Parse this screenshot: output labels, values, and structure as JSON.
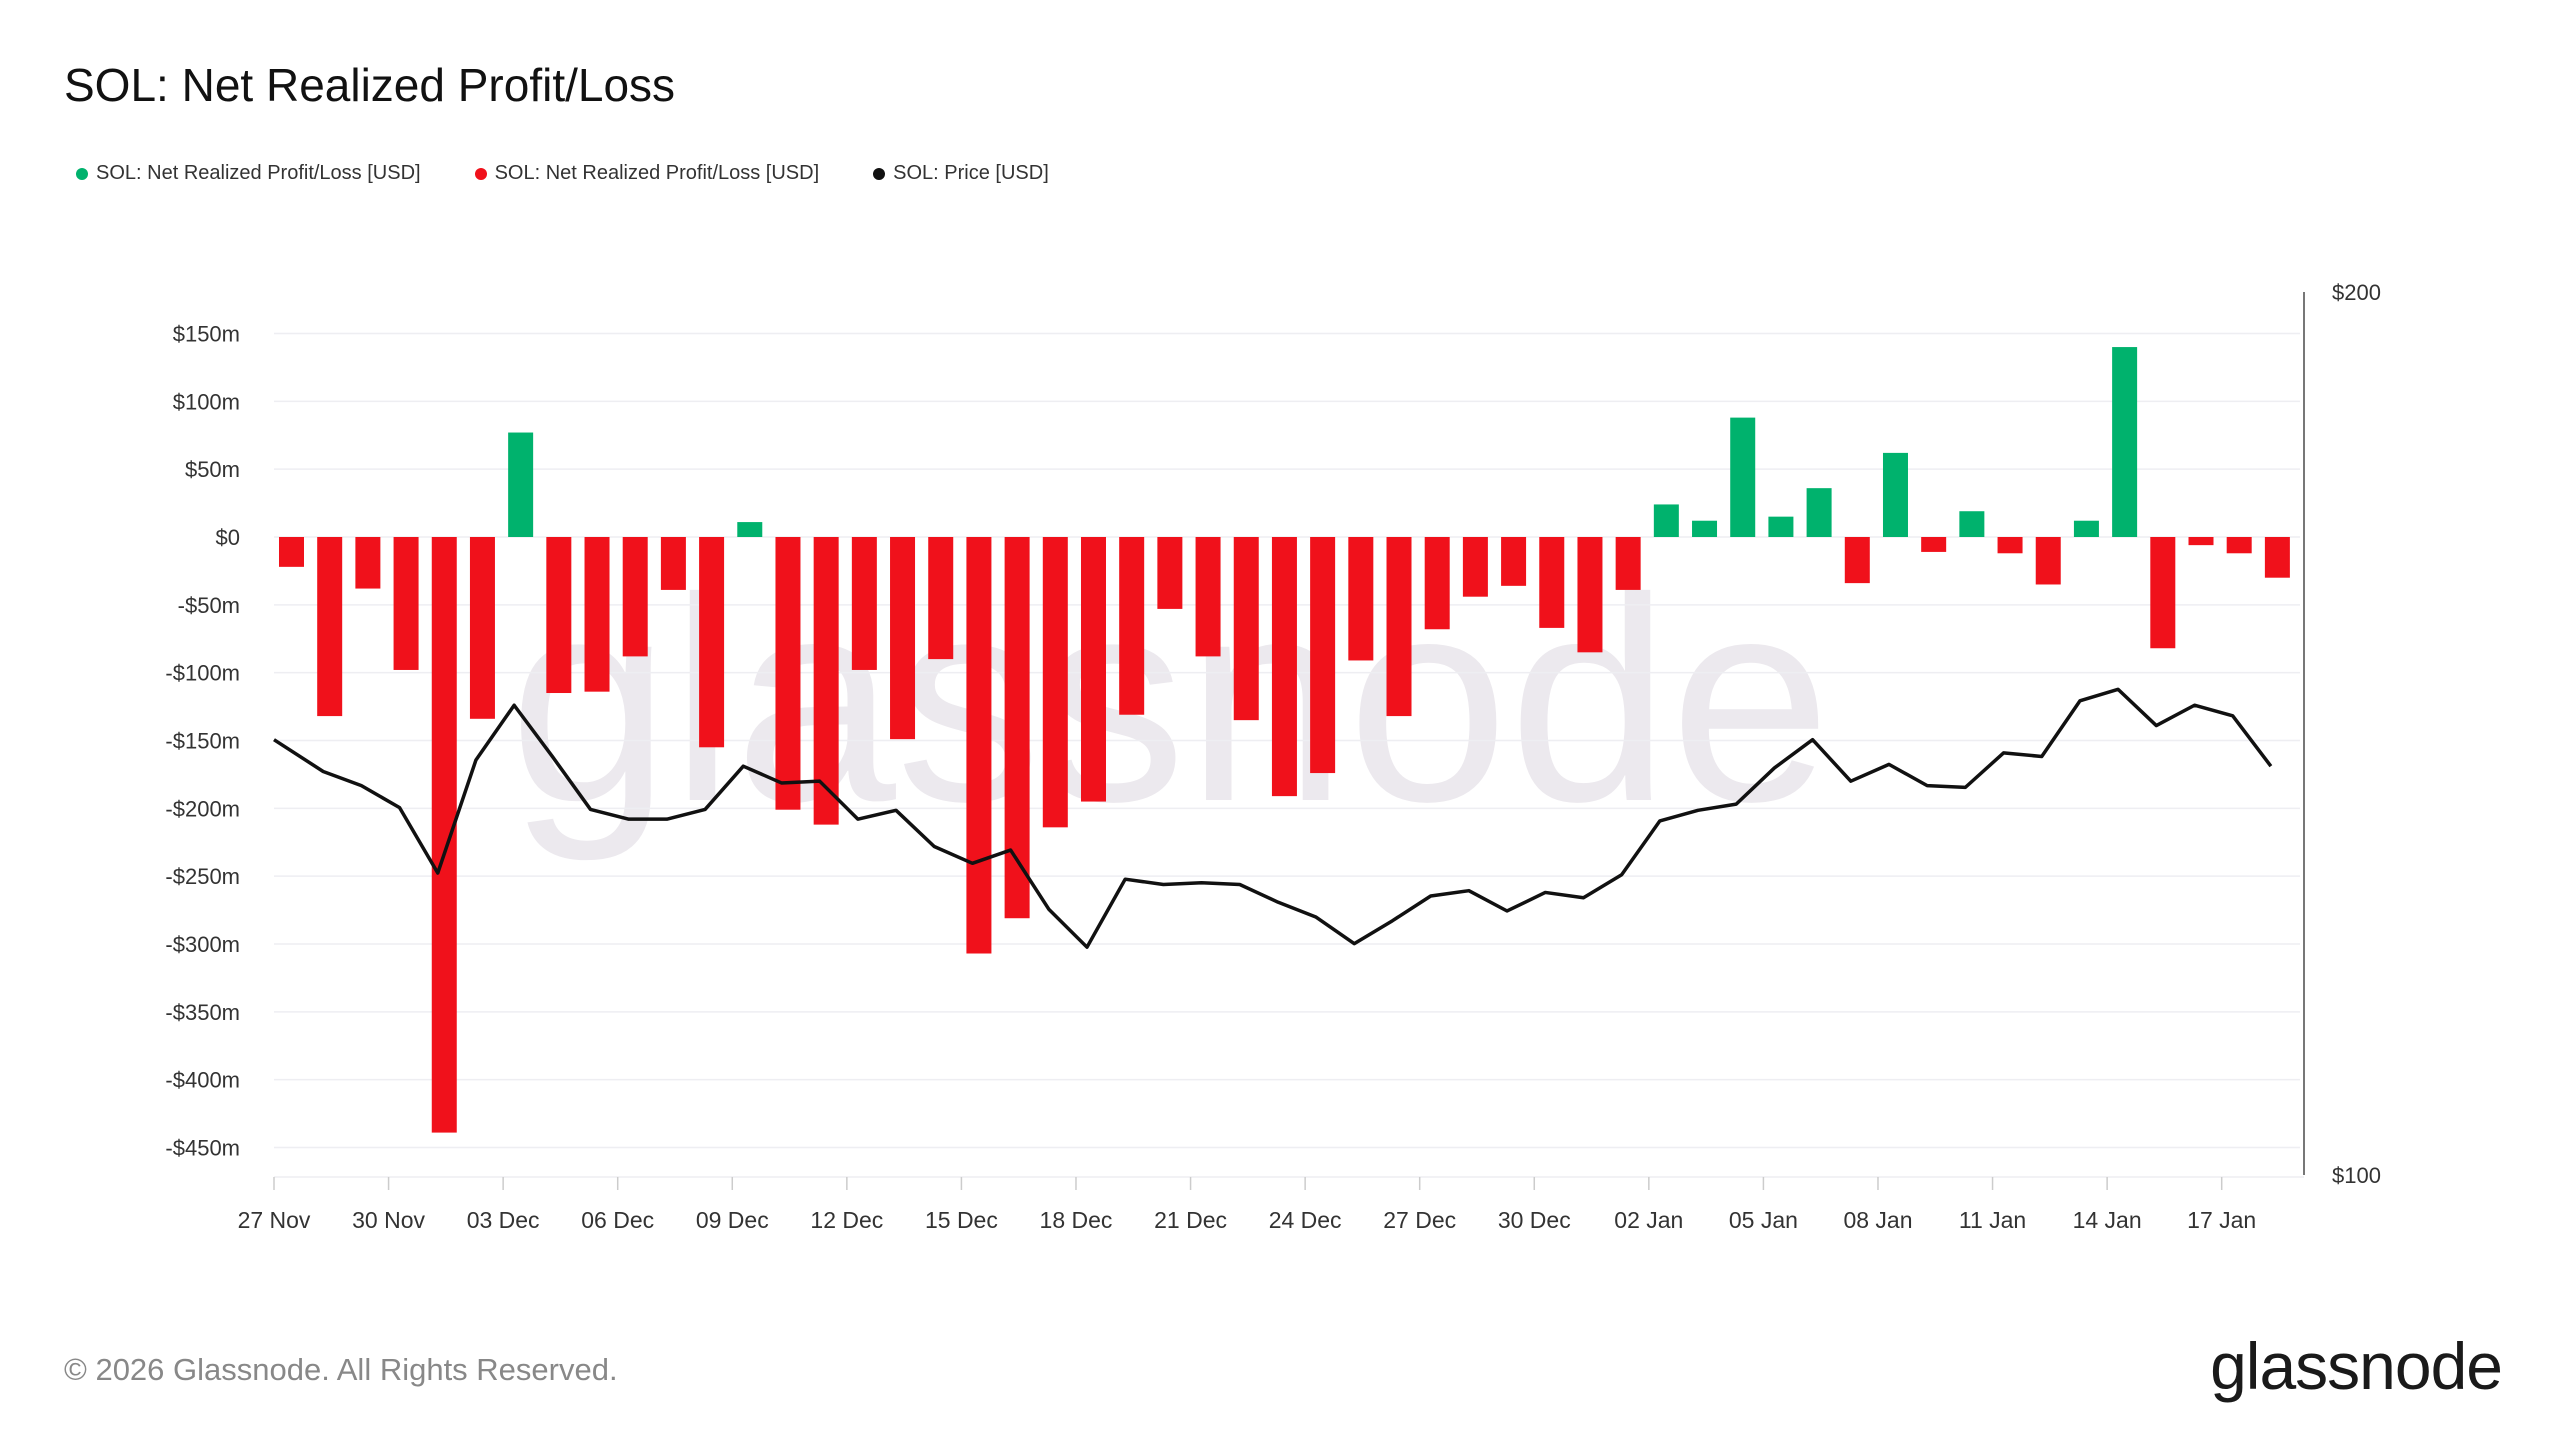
{
  "title": "SOL: Net Realized Profit/Loss",
  "footer": "© 2026 Glassnode. All Rights Reserved.",
  "logo": "glassnode",
  "watermark": "glassnode",
  "colors": {
    "profit": "#00b26d",
    "loss": "#f0111b",
    "price": "#111111"
  },
  "legend": [
    {
      "label": "SOL: Net Realized Profit/Loss [USD]",
      "color": "#00b26d"
    },
    {
      "label": "SOL: Net Realized Profit/Loss [USD]",
      "color": "#f0111b"
    },
    {
      "label": "SOL: Price [USD]",
      "color": "#111111"
    }
  ],
  "chart_data": {
    "type": "bar+line",
    "title": "SOL: Net Realized Profit/Loss",
    "x_start": "27 Nov",
    "x_tick_labels": [
      "27 Nov",
      "30 Nov",
      "03 Dec",
      "06 Dec",
      "09 Dec",
      "12 Dec",
      "15 Dec",
      "18 Dec",
      "21 Dec",
      "24 Dec",
      "27 Dec",
      "30 Dec",
      "02 Jan",
      "05 Jan",
      "08 Jan",
      "11 Jan",
      "14 Jan",
      "17 Jan"
    ],
    "y_left": {
      "ticks": [
        "$150m",
        "$100m",
        "$50m",
        "$0",
        "-$50m",
        "-$100m",
        "-$150m",
        "-$200m",
        "-$250m",
        "-$300m",
        "-$350m",
        "-$400m",
        "-$450m"
      ],
      "tick_values": [
        150,
        100,
        50,
        0,
        -50,
        -100,
        -150,
        -200,
        -250,
        -300,
        -350,
        -400,
        -450
      ],
      "unit": "USD millions"
    },
    "y_right": {
      "ticks": [
        "$200",
        "$100"
      ],
      "tick_values": [
        200,
        100
      ],
      "range": [
        100,
        200
      ]
    },
    "grid": true,
    "legend_placement": "top-left",
    "net_realized_pl_musd": [
      -22,
      -132,
      -38,
      -98,
      -439,
      -134,
      77,
      -115,
      -114,
      -88,
      -39,
      -155,
      11,
      -201,
      -212,
      -98,
      -149,
      -90,
      -307,
      -281,
      -214,
      -195,
      -131,
      -53,
      -88,
      -135,
      -191,
      -174,
      -91,
      -132,
      -68,
      -44,
      -36,
      -67,
      -85,
      -39,
      24,
      12,
      88,
      15,
      36,
      -34,
      62,
      -11,
      19,
      -12,
      -35,
      12,
      140,
      -82,
      -6,
      -12,
      -30
    ],
    "price_usd": [
      149.3,
      145.7,
      144.1,
      141.6,
      134.2,
      147.0,
      153.2,
      147.4,
      141.4,
      140.3,
      140.3,
      141.4,
      146.3,
      144.4,
      144.6,
      140.3,
      141.3,
      137.2,
      135.3,
      136.8,
      130.1,
      125.8,
      133.5,
      132.9,
      133.1,
      132.9,
      130.9,
      129.2,
      126.2,
      128.8,
      131.6,
      132.2,
      129.9,
      132.0,
      131.4,
      134.0,
      140.1,
      141.3,
      142.0,
      146.1,
      149.3,
      144.6,
      146.5,
      144.1,
      143.9,
      147.8,
      147.4,
      153.7,
      155.0,
      150.9,
      153.2,
      152.0,
      146.3
    ]
  }
}
